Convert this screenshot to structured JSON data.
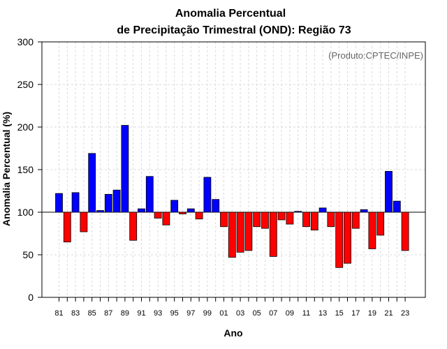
{
  "chart_data": {
    "type": "bar",
    "title_line1": "Anomalia Percentual",
    "title_line2": "de Precipitação Trimestral (OND): Região 73",
    "xlabel": "Ano",
    "ylabel": "Anomalia Percentual (%)",
    "credit": "(Produto:CPTEC/INPE)",
    "ylim": [
      0,
      300
    ],
    "yticks": [
      0,
      50,
      100,
      150,
      200,
      250,
      300
    ],
    "baseline": 100,
    "grid": true,
    "categories": [
      "81",
      "82",
      "83",
      "84",
      "85",
      "86",
      "87",
      "88",
      "89",
      "90",
      "91",
      "92",
      "93",
      "94",
      "95",
      "96",
      "97",
      "98",
      "99",
      "00",
      "01",
      "02",
      "03",
      "04",
      "05",
      "06",
      "07",
      "08",
      "09",
      "10",
      "11",
      "12",
      "13",
      "14",
      "15",
      "16",
      "17",
      "18",
      "19",
      "20",
      "21",
      "22",
      "23"
    ],
    "xtick_labels": [
      "81",
      "83",
      "85",
      "87",
      "89",
      "91",
      "93",
      "95",
      "97",
      "99",
      "01",
      "03",
      "05",
      "07",
      "09",
      "11",
      "13",
      "15",
      "17",
      "19",
      "21",
      "23"
    ],
    "values": [
      122,
      65,
      123,
      77,
      169,
      102,
      121,
      126,
      202,
      67,
      104,
      142,
      93,
      85,
      114,
      98,
      104,
      92,
      141,
      115,
      83,
      47,
      53,
      55,
      83,
      81,
      48,
      91,
      86,
      101,
      83,
      79,
      105,
      83,
      35,
      40,
      81,
      103,
      57,
      73,
      148,
      113,
      55
    ],
    "colors": {
      "above": "#0000ff",
      "below": "#ff0000",
      "bar_edge": "#000000",
      "grid": "#d9d9d9",
      "frame": "#000000"
    }
  }
}
